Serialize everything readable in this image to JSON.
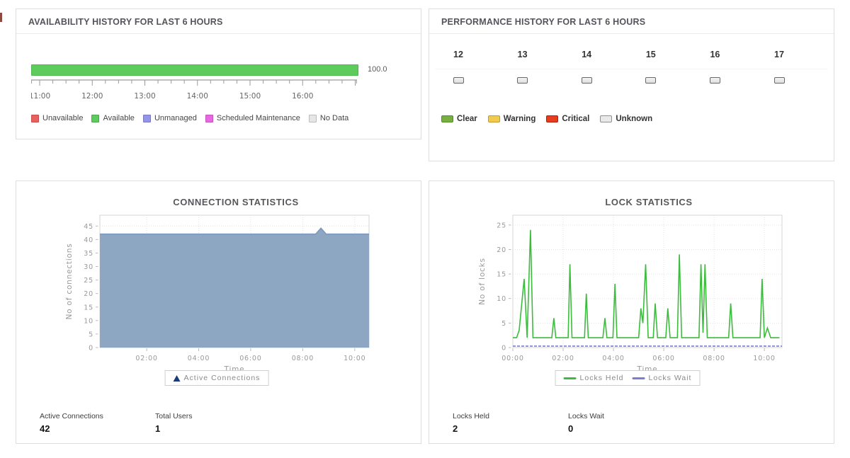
{
  "availability_panel": {
    "title": "AVAILABILITY HISTORY FOR LAST 6 HOURS",
    "bar_value_label": "100.0",
    "bar_color": "#5dcc5d",
    "bar_border_color": "#4db64d",
    "axis": {
      "hour_labels": [
        "11:00",
        "12:00",
        "13:00",
        "14:00",
        "15:00",
        "16:00"
      ]
    },
    "legend": [
      {
        "label": "Unavailable",
        "color": "#e9605e"
      },
      {
        "label": "Available",
        "color": "#5dcc5d"
      },
      {
        "label": "Unmanaged",
        "color": "#9295e8"
      },
      {
        "label": "Scheduled Maintenance",
        "color": "#e967e3"
      },
      {
        "label": "No Data",
        "color": "#e6e6e6"
      }
    ]
  },
  "performance_panel": {
    "title": "PERFORMANCE HISTORY FOR LAST 6 HOURS",
    "hours": [
      {
        "label": "12",
        "status": "unknown"
      },
      {
        "label": "13",
        "status": "unknown"
      },
      {
        "label": "14",
        "status": "unknown"
      },
      {
        "label": "15",
        "status": "unknown"
      },
      {
        "label": "16",
        "status": "unknown"
      },
      {
        "label": "17",
        "status": "unknown"
      }
    ],
    "status_colors": {
      "unknown": {
        "fill": "#ebebeb",
        "border": "#686868"
      }
    },
    "legend": [
      {
        "label": "Clear",
        "color": "#77b041",
        "border": "#538c20"
      },
      {
        "label": "Warning",
        "color": "#f1ca50",
        "border": "#c9992b"
      },
      {
        "label": "Critical",
        "color": "#e73c1e",
        "border": "#b01c06"
      },
      {
        "label": "Unknown",
        "color": "#e9e9e9",
        "border": "#909090"
      }
    ]
  },
  "connection_panel": {
    "title": "CONNECTION STATISTICS",
    "legend": [
      {
        "label": "Active Connections",
        "marker": "triangle",
        "color": "#1c3a78"
      }
    ],
    "stats": [
      {
        "label": "Active Connections",
        "value": "42"
      },
      {
        "label": "Total Users",
        "value": "1"
      }
    ]
  },
  "lock_panel": {
    "title": "LOCK STATISTICS",
    "legend": [
      {
        "label": "Locks Held",
        "marker": "line",
        "color": "#3cbc3c"
      },
      {
        "label": "Locks Wait",
        "marker": "line",
        "color": "#7b7dd4"
      }
    ],
    "stats": [
      {
        "label": "Locks Held",
        "value": "2"
      },
      {
        "label": "Locks Wait",
        "value": "0"
      }
    ]
  },
  "chart_data": [
    {
      "id": "connection-chart",
      "type": "area",
      "title": "CONNECTION STATISTICS",
      "xlabel": "Time",
      "ylabel": "No of connections",
      "xlim": [
        0.2,
        10.55
      ],
      "ylim": [
        0,
        49
      ],
      "yticks": [
        0,
        5,
        10,
        15,
        20,
        25,
        30,
        35,
        40,
        45
      ],
      "xticks": [
        {
          "v": 2,
          "label": "02:00"
        },
        {
          "v": 4,
          "label": "04:00"
        },
        {
          "v": 6,
          "label": "06:00"
        },
        {
          "v": 8,
          "label": "08:00"
        },
        {
          "v": 10,
          "label": "10:00"
        }
      ],
      "grid": true,
      "legend_position": "bottom",
      "series": [
        {
          "name": "Active Connections",
          "color": "#7d98ba",
          "fill": "#8da6c2",
          "points": [
            [
              0.2,
              42
            ],
            [
              8.5,
              42
            ],
            [
              8.7,
              44.2
            ],
            [
              8.9,
              42
            ],
            [
              10.55,
              42
            ]
          ]
        }
      ]
    },
    {
      "id": "lock-chart",
      "type": "line",
      "title": "LOCK STATISTICS",
      "xlabel": "Time",
      "ylabel": "No of locks",
      "xlim": [
        0,
        10.7
      ],
      "ylim": [
        0,
        27
      ],
      "yticks": [
        0,
        5,
        10,
        15,
        20,
        25
      ],
      "xticks": [
        {
          "v": 0,
          "label": "00:00"
        },
        {
          "v": 2,
          "label": "02:00"
        },
        {
          "v": 4,
          "label": "04:00"
        },
        {
          "v": 6,
          "label": "06:00"
        },
        {
          "v": 8,
          "label": "08:00"
        },
        {
          "v": 10,
          "label": "10:00"
        }
      ],
      "grid": true,
      "legend_position": "bottom",
      "series": [
        {
          "name": "Locks Held",
          "color": "#3cbc3c",
          "points": [
            [
              0,
              2
            ],
            [
              0.15,
              2
            ],
            [
              0.25,
              3.5
            ],
            [
              0.45,
              14
            ],
            [
              0.57,
              2
            ],
            [
              0.7,
              24
            ],
            [
              0.8,
              2
            ],
            [
              1.55,
              2
            ],
            [
              1.63,
              6
            ],
            [
              1.71,
              2
            ],
            [
              2.2,
              2
            ],
            [
              2.27,
              17
            ],
            [
              2.35,
              2
            ],
            [
              2.85,
              2
            ],
            [
              2.92,
              11
            ],
            [
              3.0,
              2
            ],
            [
              3.58,
              2
            ],
            [
              3.66,
              6
            ],
            [
              3.74,
              2
            ],
            [
              3.98,
              2
            ],
            [
              4.06,
              13
            ],
            [
              4.14,
              2
            ],
            [
              5.0,
              2
            ],
            [
              5.09,
              8
            ],
            [
              5.17,
              5
            ],
            [
              5.28,
              17
            ],
            [
              5.38,
              2
            ],
            [
              5.58,
              2
            ],
            [
              5.66,
              9
            ],
            [
              5.75,
              2
            ],
            [
              6.08,
              2
            ],
            [
              6.16,
              8
            ],
            [
              6.25,
              2
            ],
            [
              6.54,
              2
            ],
            [
              6.62,
              19
            ],
            [
              6.71,
              2
            ],
            [
              7.4,
              2
            ],
            [
              7.48,
              17
            ],
            [
              7.56,
              3
            ],
            [
              7.64,
              17
            ],
            [
              7.73,
              2
            ],
            [
              8.58,
              2
            ],
            [
              8.66,
              9
            ],
            [
              8.75,
              2
            ],
            [
              9.83,
              2
            ],
            [
              9.91,
              14
            ],
            [
              10.0,
              2
            ],
            [
              10.12,
              4
            ],
            [
              10.25,
              2
            ],
            [
              10.6,
              2
            ]
          ]
        },
        {
          "name": "Locks Wait",
          "color": "#7b7dd4",
          "dashed": true,
          "points": [
            [
              0,
              0.3
            ],
            [
              10.7,
              0.3
            ]
          ]
        }
      ]
    }
  ]
}
